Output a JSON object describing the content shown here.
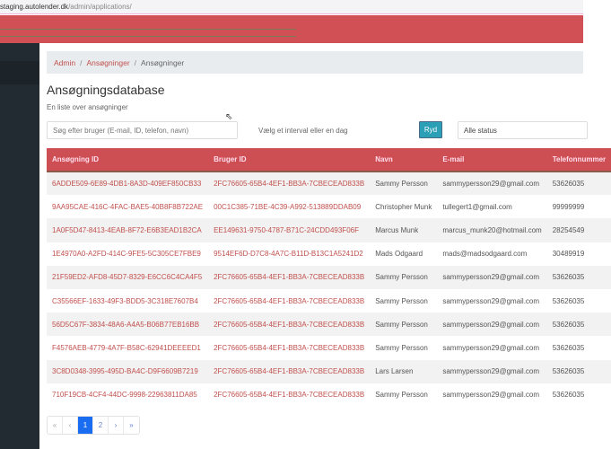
{
  "browser": {
    "url_host": "staging.autolender.dk",
    "url_path": "/admin/applications/"
  },
  "breadcrumb": [
    "Admin",
    "Ansøgninger",
    "Ansøgninger"
  ],
  "page": {
    "title": "Ansøgningsdatabase",
    "subtitle": "En liste over ansøgninger"
  },
  "filters": {
    "search_placeholder": "Søg efter bruger (E-mail, ID, telefon, navn)",
    "range_placeholder": "Vælg et interval eller en dag",
    "clear_label": "Ryd",
    "status_value": "Alle status"
  },
  "table": {
    "columns": [
      "Ansøgning ID",
      "Bruger ID",
      "Navn",
      "E-mail",
      "Telefonnummer"
    ],
    "rows": [
      [
        "6ADDE509-6E89-4DB1-8A3D-409EF850CB33",
        "2FC76605-65B4-4EF1-BB3A-7CBECEAD833B",
        "Sammy Persson",
        "sammypersson29@gmail.com",
        "53626035"
      ],
      [
        "9AA95CAE-416C-4FAC-BAE5-40B8F8B722AE",
        "00C1C385-71BE-4C39-A992-513889DDAB09",
        "Christopher Munk",
        "tullegert1@gmail.com",
        "99999999"
      ],
      [
        "1A0F5D47-8413-4EAB-8F72-E6B3EAD1B2CA",
        "EE149631-9750-4787-B71C-24CDD493F06F",
        "Marcus Munk",
        "marcus_munk20@hotmail.com",
        "28254549"
      ],
      [
        "1E4970A0-A2FD-414C-9FE5-5C305CE7FBE9",
        "9514EF6D-D7C8-4A7C-B11D-B13C1A5241D2",
        "Mads Odgaard",
        "mads@madsodgaard.com",
        "30489919"
      ],
      [
        "21F59ED2-AFD8-45D7-8329-E6CC6C4CA4F5",
        "2FC76605-65B4-4EF1-BB3A-7CBECEAD833B",
        "Sammy Persson",
        "sammypersson29@gmail.com",
        "53626035"
      ],
      [
        "C35566EF-1633-49F3-BDD5-3C318E7607B4",
        "2FC76605-65B4-4EF1-BB3A-7CBECEAD833B",
        "Sammy Persson",
        "sammypersson29@gmail.com",
        "53626035"
      ],
      [
        "56D5C67F-3834-48A6-A4A5-B06B77EB16BB",
        "2FC76605-65B4-4EF1-BB3A-7CBECEAD833B",
        "Sammy Persson",
        "sammypersson29@gmail.com",
        "53626035"
      ],
      [
        "F4576AEB-4779-4A7F-B58C-62941DEEEED1",
        "2FC76605-65B4-4EF1-BB3A-7CBECEAD833B",
        "Sammy Persson",
        "sammypersson29@gmail.com",
        "53626035"
      ],
      [
        "3C8D0348-3995-495D-BA4C-D9F6609B7219",
        "2FC76605-65B4-4EF1-BB3A-7CBECEAD833B",
        "Lars Larsen",
        "sammypersson29@gmail.com",
        "53626035"
      ],
      [
        "710F19CB-4CF4-44DC-9998-22963811DA85",
        "2FC76605-65B4-4EF1-BB3A-7CBECEAD833B",
        "Sammy Persson",
        "sammypersson29@gmail.com",
        "53626035"
      ]
    ]
  },
  "pagination": {
    "first": "«",
    "prev": "‹",
    "pages": [
      "1",
      "2"
    ],
    "current": "1",
    "next": "›",
    "last": "»"
  },
  "colors": {
    "header": "#d05055",
    "accent": "#c0504d",
    "sidebar": "#222b31",
    "clear_button": "#2a9fb5",
    "active_page": "#1a6cf0"
  }
}
